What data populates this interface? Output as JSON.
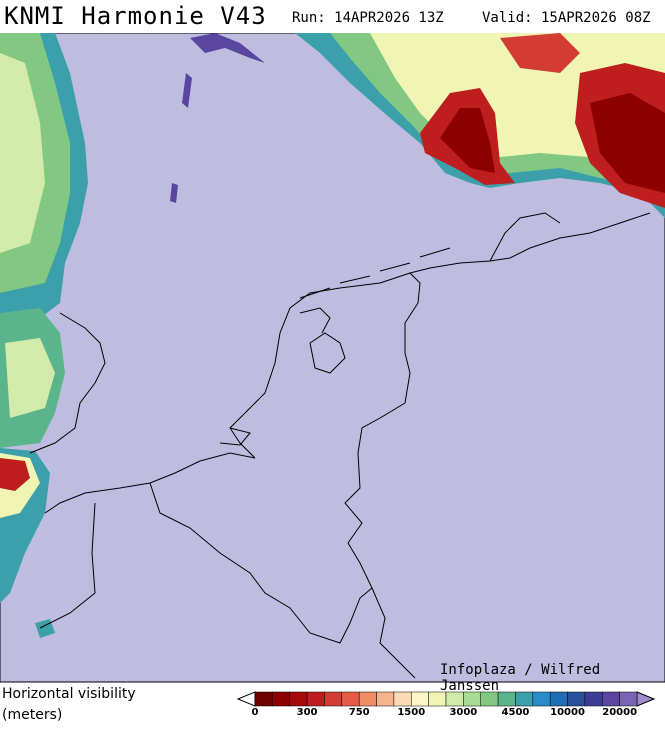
{
  "header": {
    "title": "KNMI Harmonie V43",
    "run": "Run: 14APR2026 13Z",
    "valid": "Valid: 15APR2026 08Z"
  },
  "map": {
    "credit": "Infoplaza / Wilfred Janssen"
  },
  "legend": {
    "title": "Horizontal visibility",
    "units": "(meters)",
    "labels": [
      "0",
      "300",
      "750",
      "1500",
      "3000",
      "4500",
      "10000",
      "20000"
    ],
    "colors": [
      "#6e0000",
      "#8c0000",
      "#a50a0a",
      "#be1e1e",
      "#d23c32",
      "#e65a46",
      "#f08c64",
      "#f5b48c",
      "#fadcb4",
      "#fff5c8",
      "#f0f5b4",
      "#d2ebaa",
      "#aadc96",
      "#82c882",
      "#5ab48c",
      "#3ca0aa",
      "#288cc8",
      "#1e6eb4",
      "#28509b",
      "#3c3c96",
      "#5a46a0",
      "#7864b4"
    ]
  }
}
